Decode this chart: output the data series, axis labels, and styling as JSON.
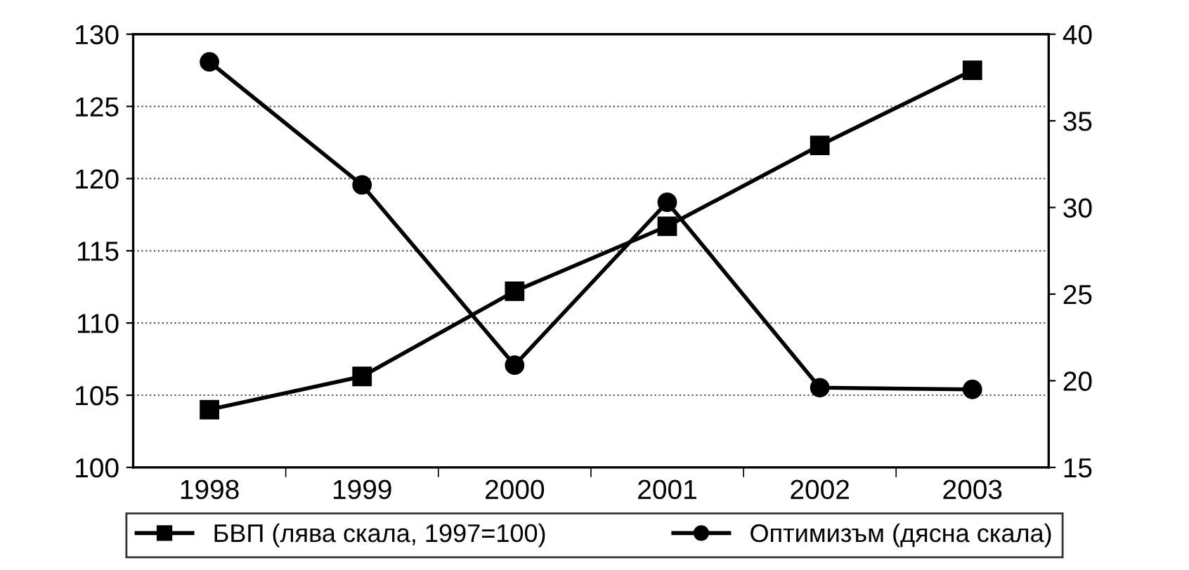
{
  "chart_data": {
    "type": "line",
    "categories": [
      "1998",
      "1999",
      "2000",
      "2001",
      "2002",
      "2003"
    ],
    "series": [
      {
        "name": "БВП (лява скала, 1997=100)",
        "color": "#000000",
        "marker": "square",
        "values": [
          104.0,
          106.3,
          112.2,
          116.7,
          122.3,
          127.5
        ]
      },
      {
        "name": "Оптимизъм (дясна скала)",
        "color": "#000000",
        "marker": "circle",
        "axis": "y2",
        "values": [
          38.4,
          31.3,
          20.9,
          30.3,
          19.6,
          19.5
        ]
      }
    ],
    "ylim": [
      100,
      130
    ],
    "yticks": [
      100,
      105,
      110,
      115,
      120,
      125,
      130
    ],
    "y2lim": [
      15,
      40
    ],
    "y2ticks": [
      15,
      20,
      25,
      30,
      35,
      40
    ],
    "grid": "y",
    "legend": "bottom",
    "line_style": "solid"
  }
}
